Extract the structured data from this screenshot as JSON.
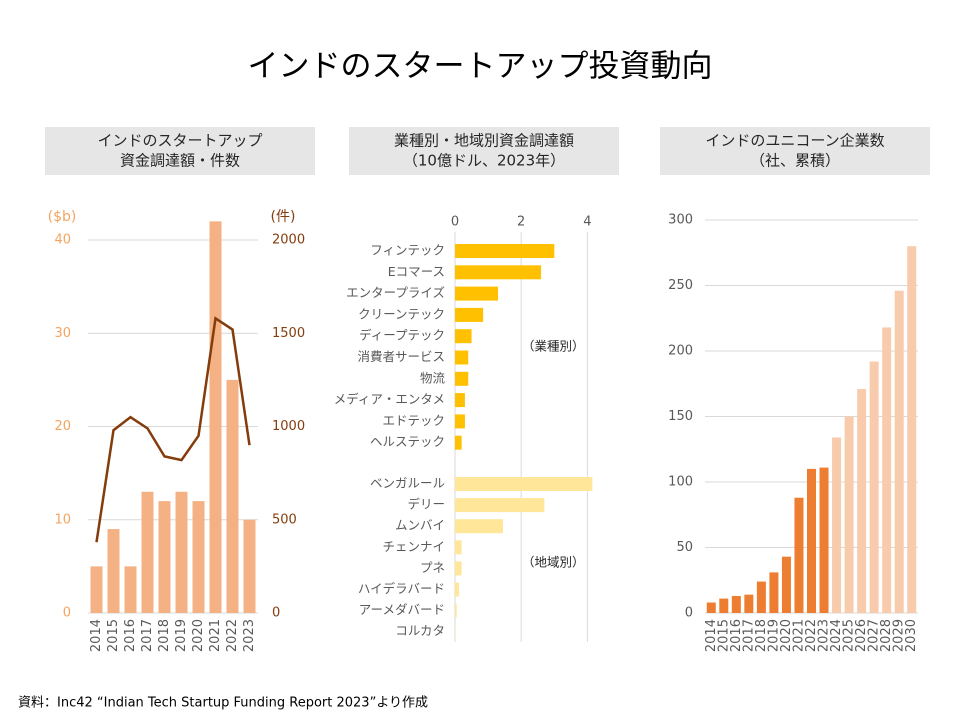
{
  "title": "インドのスタートアップ投資動向",
  "source": "資料：Inc42 “Indian Tech Startup Funding Report 2023”より作成",
  "chart_data": [
    {
      "type": "bar_line",
      "title": [
        "インドのスタートアップ",
        "資金調達額・件数"
      ],
      "ylabel": "($b)",
      "y2label": "(件)",
      "categories": [
        "2014",
        "2015",
        "2016",
        "2017",
        "2018",
        "2019",
        "2020",
        "2021",
        "2022",
        "2023"
      ],
      "series": [
        {
          "color": "#f4b183",
          "values": [
            5,
            9,
            5,
            13,
            12,
            13,
            12,
            42,
            25,
            10
          ]
        },
        {
          "color": "#843c0c",
          "axis": "y2",
          "values": [
            380,
            980,
            1050,
            990,
            840,
            820,
            950,
            1580,
            1520,
            900
          ]
        }
      ],
      "ylim": [
        0,
        40
      ],
      "yticks": [
        0,
        10,
        20,
        30,
        40
      ],
      "y2lim": [
        0,
        2000
      ],
      "y2ticks": [
        0,
        500,
        1000,
        1500,
        2000
      ],
      "ycolor": "#f4a460",
      "y2color": "#843c0c",
      "grid": true
    },
    {
      "type": "hbar",
      "title": [
        "業種別・地域別資金調達額",
        "（10億ドル、2023年）"
      ],
      "xlim": [
        0,
        4.2
      ],
      "xticks": [
        0,
        2,
        4
      ],
      "grid": true,
      "groups": [
        {
          "label": "（業種別）",
          "color": "#ffc000",
          "categories": [
            "フィンテック",
            "Eコマース",
            "エンタープライズ",
            "クリーンテック",
            "ディープテック",
            "消費者サービス",
            "物流",
            "メディア・エンタメ",
            "エドテック",
            "ヘルステック"
          ],
          "values": [
            3.0,
            2.6,
            1.3,
            0.85,
            0.5,
            0.4,
            0.4,
            0.3,
            0.3,
            0.2
          ]
        },
        {
          "label": "（地域別）",
          "color": "#ffe699",
          "categories": [
            "ベンガルール",
            "デリー",
            "ムンバイ",
            "チェンナイ",
            "プネ",
            "ハイデラバード",
            "アーメダバード",
            "コルカタ"
          ],
          "values": [
            4.15,
            2.7,
            1.45,
            0.2,
            0.2,
            0.12,
            0.05,
            0.01
          ]
        }
      ]
    },
    {
      "type": "bar",
      "title": [
        "インドのユニコーン企業数",
        "（社、累積）"
      ],
      "categories": [
        "2014",
        "2015",
        "2016",
        "2017",
        "2018",
        "2019",
        "2020",
        "2021",
        "2022",
        "2023",
        "2024",
        "2025",
        "2026",
        "2027",
        "2028",
        "2029",
        "2030"
      ],
      "values": [
        8,
        11,
        13,
        14,
        24,
        31,
        43,
        88,
        110,
        111,
        134,
        150,
        171,
        192,
        218,
        246,
        280
      ],
      "colors": [
        "#ed7d31",
        "#ed7d31",
        "#ed7d31",
        "#ed7d31",
        "#ed7d31",
        "#ed7d31",
        "#ed7d31",
        "#ed7d31",
        "#ed7d31",
        "#ed7d31",
        "#f8cbad",
        "#f8cbad",
        "#f8cbad",
        "#f8cbad",
        "#f8cbad",
        "#f8cbad",
        "#f8cbad"
      ],
      "ylim": [
        0,
        300
      ],
      "yticks": [
        0,
        50,
        100,
        150,
        200,
        250,
        300
      ],
      "grid": true
    }
  ]
}
